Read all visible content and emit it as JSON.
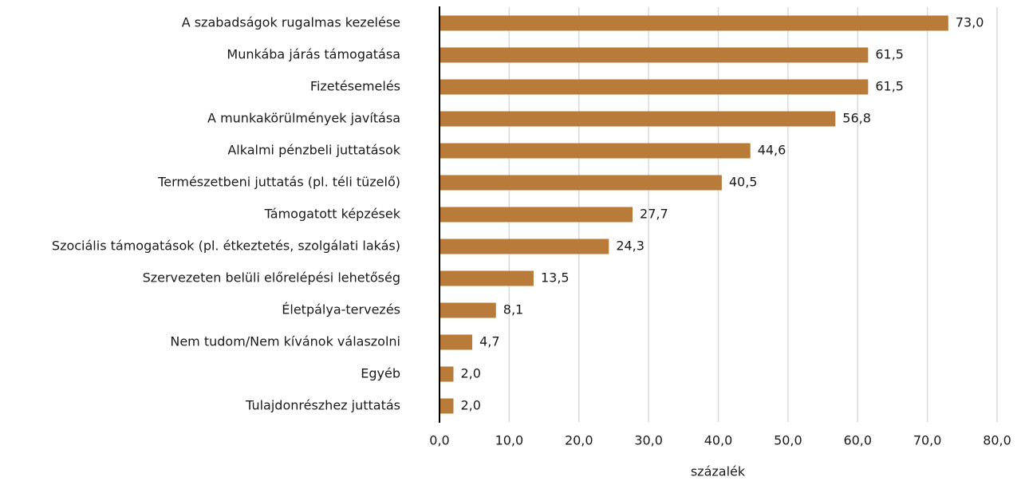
{
  "chart_data": {
    "type": "bar",
    "orientation": "horizontal",
    "x_label": "százalék",
    "categories": [
      "A szabadságok rugalmas kezelése",
      "Munkába járás támogatása",
      "Fizetésemelés",
      "A munkakörülmények javítása",
      "Alkalmi pénzbeli juttatások",
      "Természetbeni juttatás (pl. téli tüzelő)",
      "Támogatott képzések",
      "Szociális támogatások (pl. étkeztetés, szolgálati lakás)",
      "Szervezeten belüli előrelépési lehetőség",
      "Életpálya-tervezés",
      "Nem tudom/Nem kívánok válaszolni",
      "Egyéb",
      "Tulajdonrészhez juttatás"
    ],
    "values": [
      73.0,
      61.5,
      61.5,
      56.8,
      44.6,
      40.5,
      27.7,
      24.3,
      13.5,
      8.1,
      4.7,
      2.0,
      2.0
    ],
    "value_labels": [
      "73,0",
      "61,5",
      "61,5",
      "56,8",
      "44,6",
      "40,5",
      "27,7",
      "24,3",
      "13,5",
      "8,1",
      "4,7",
      "2,0",
      "2,0"
    ],
    "color": "#b87b3a",
    "xlim": [
      0,
      80
    ],
    "xticks": [
      {
        "value": 0,
        "label": "0,0"
      },
      {
        "value": 10,
        "label": "10,0"
      },
      {
        "value": 20,
        "label": "20,0"
      },
      {
        "value": 30,
        "label": "30,0"
      },
      {
        "value": 40,
        "label": "40,0"
      },
      {
        "value": 50,
        "label": "50,0"
      },
      {
        "value": 60,
        "label": "60,0"
      },
      {
        "value": 70,
        "label": "70,0"
      },
      {
        "value": 80,
        "label": "80,0"
      }
    ],
    "grid": true
  }
}
